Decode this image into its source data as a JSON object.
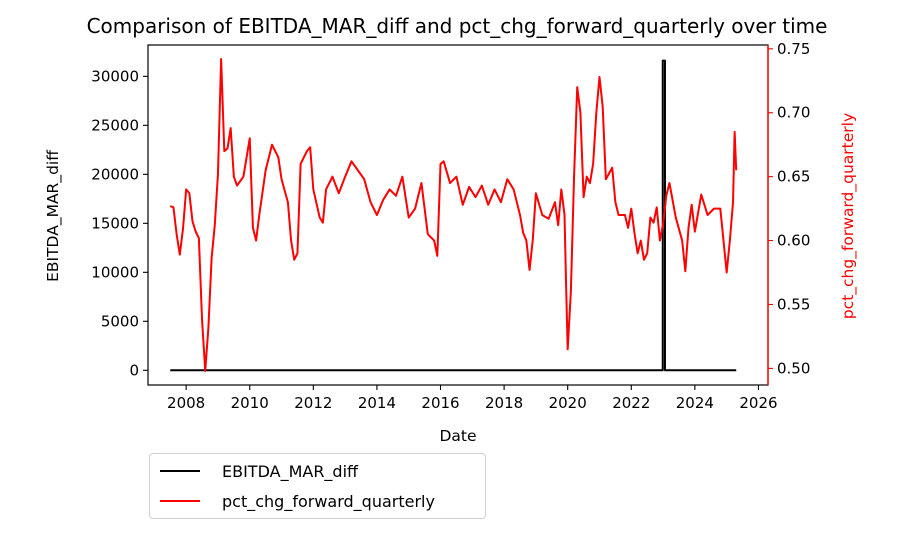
{
  "chart_data": {
    "type": "line",
    "title": "Comparison of EBITDA_MAR_diff and pct_chg_forward_quarterly over time",
    "xlabel": "Date",
    "ylabel_left": "EBITDA_MAR_diff",
    "ylabel_right": "pct_chg_forward_quarterly",
    "x_ticks": [
      "2008",
      "2010",
      "2012",
      "2014",
      "2016",
      "2018",
      "2020",
      "2022",
      "2024",
      "2026"
    ],
    "y_left_ticks": [
      "0",
      "5000",
      "10000",
      "15000",
      "20000",
      "25000",
      "30000"
    ],
    "y_right_ticks": [
      "0.50",
      "0.55",
      "0.60",
      "0.65",
      "0.70",
      "0.75"
    ],
    "x_range": [
      2006.8,
      2026.3
    ],
    "y_left_range": [
      -1500,
      33200
    ],
    "y_right_range": [
      0.487,
      0.753
    ],
    "grid": false,
    "legend_position": "below-left",
    "colors": {
      "left_series": "#000000",
      "right_series": "#ff0000",
      "right_axis": "#ff0000"
    },
    "series": [
      {
        "name": "EBITDA_MAR_diff",
        "axis": "left",
        "color": "#000000",
        "x": [
          2007.5,
          2022.99,
          2022.99,
          2023.06,
          2023.06,
          2025.3
        ],
        "y": [
          0,
          0,
          31600,
          31600,
          0,
          0
        ]
      },
      {
        "name": "pct_chg_forward_quarterly",
        "axis": "right",
        "color": "#ff0000",
        "x": [
          2007.5,
          2007.6,
          2007.7,
          2007.8,
          2007.9,
          2008.0,
          2008.1,
          2008.2,
          2008.3,
          2008.4,
          2008.5,
          2008.6,
          2008.7,
          2008.8,
          2008.9,
          2009.0,
          2009.1,
          2009.2,
          2009.3,
          2009.4,
          2009.5,
          2009.6,
          2009.8,
          2010.0,
          2010.1,
          2010.2,
          2010.3,
          2010.5,
          2010.7,
          2010.9,
          2011.0,
          2011.2,
          2011.3,
          2011.4,
          2011.5,
          2011.6,
          2011.8,
          2011.9,
          2012.0,
          2012.2,
          2012.3,
          2012.4,
          2012.6,
          2012.8,
          2013.0,
          2013.2,
          2013.4,
          2013.6,
          2013.8,
          2014.0,
          2014.2,
          2014.4,
          2014.6,
          2014.8,
          2015.0,
          2015.2,
          2015.4,
          2015.6,
          2015.8,
          2015.9,
          2016.0,
          2016.1,
          2016.3,
          2016.5,
          2016.7,
          2016.9,
          2017.1,
          2017.3,
          2017.5,
          2017.7,
          2017.9,
          2018.1,
          2018.3,
          2018.5,
          2018.6,
          2018.7,
          2018.8,
          2018.9,
          2019.0,
          2019.2,
          2019.4,
          2019.6,
          2019.7,
          2019.8,
          2019.9,
          2019.95,
          2020.0,
          2020.1,
          2020.2,
          2020.3,
          2020.4,
          2020.5,
          2020.6,
          2020.7,
          2020.8,
          2020.9,
          2021.0,
          2021.1,
          2021.2,
          2021.4,
          2021.5,
          2021.6,
          2021.8,
          2021.9,
          2022.0,
          2022.1,
          2022.2,
          2022.3,
          2022.4,
          2022.5,
          2022.6,
          2022.7,
          2022.8,
          2022.9,
          2023.0,
          2023.1,
          2023.2,
          2023.4,
          2023.6,
          2023.7,
          2023.8,
          2023.9,
          2024.0,
          2024.2,
          2024.4,
          2024.6,
          2024.8,
          2024.9,
          2025.0,
          2025.1,
          2025.2,
          2025.25,
          2025.3
        ],
        "y": [
          0.627,
          0.626,
          0.605,
          0.589,
          0.609,
          0.64,
          0.637,
          0.615,
          0.607,
          0.602,
          0.538,
          0.498,
          0.532,
          0.586,
          0.612,
          0.652,
          0.742,
          0.67,
          0.672,
          0.688,
          0.65,
          0.643,
          0.65,
          0.68,
          0.61,
          0.6,
          0.62,
          0.655,
          0.675,
          0.665,
          0.648,
          0.63,
          0.6,
          0.585,
          0.59,
          0.66,
          0.67,
          0.673,
          0.64,
          0.618,
          0.614,
          0.64,
          0.65,
          0.637,
          0.65,
          0.662,
          0.655,
          0.648,
          0.63,
          0.62,
          0.632,
          0.64,
          0.635,
          0.65,
          0.618,
          0.625,
          0.645,
          0.605,
          0.6,
          0.588,
          0.66,
          0.662,
          0.645,
          0.65,
          0.628,
          0.642,
          0.634,
          0.643,
          0.628,
          0.64,
          0.63,
          0.648,
          0.64,
          0.62,
          0.606,
          0.6,
          0.577,
          0.6,
          0.637,
          0.62,
          0.617,
          0.63,
          0.612,
          0.64,
          0.62,
          0.565,
          0.515,
          0.56,
          0.65,
          0.72,
          0.7,
          0.634,
          0.65,
          0.645,
          0.66,
          0.7,
          0.728,
          0.705,
          0.648,
          0.657,
          0.63,
          0.62,
          0.62,
          0.61,
          0.625,
          0.606,
          0.59,
          0.6,
          0.585,
          0.59,
          0.618,
          0.614,
          0.626,
          0.6,
          0.613,
          0.635,
          0.645,
          0.618,
          0.6,
          0.576,
          0.61,
          0.628,
          0.607,
          0.636,
          0.62,
          0.625,
          0.625,
          0.6,
          0.575,
          0.6,
          0.63,
          0.685,
          0.655
        ]
      }
    ]
  }
}
